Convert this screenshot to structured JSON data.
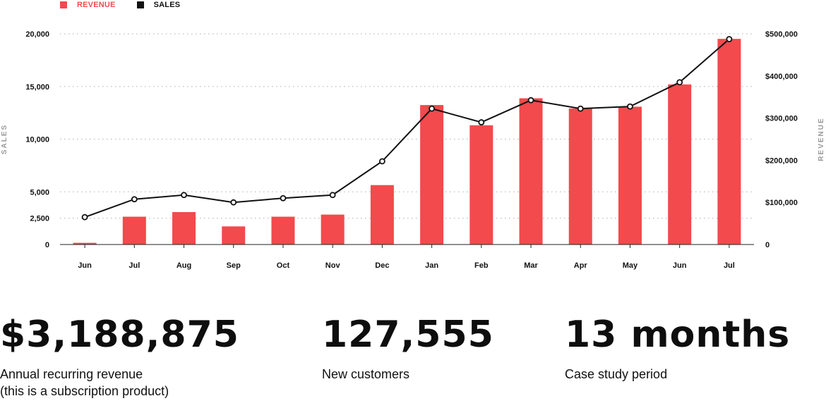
{
  "legend": [
    {
      "label": "REVENUE",
      "color": "#f24a4d",
      "text_color": "#f24a4d"
    },
    {
      "label": "SALES",
      "color": "#111111",
      "text_color": "#111111"
    }
  ],
  "chart_data": {
    "type": "bar+line",
    "categories": [
      "Jun",
      "Jul",
      "Aug",
      "Sep",
      "Oct",
      "Nov",
      "Dec",
      "Jan",
      "Feb",
      "Mar",
      "Apr",
      "May",
      "Jun",
      "Jul"
    ],
    "series": [
      {
        "name": "REVENUE",
        "type": "bar",
        "axis": "right",
        "color": "#f24a4d",
        "values": [
          4000,
          66000,
          77000,
          43000,
          66000,
          71000,
          141000,
          331000,
          283000,
          347000,
          323000,
          327000,
          380000,
          488000
        ]
      },
      {
        "name": "SALES",
        "type": "line",
        "axis": "left",
        "color": "#111111",
        "values": [
          2600,
          4300,
          4700,
          4000,
          4400,
          4700,
          7900,
          12900,
          11600,
          13700,
          12900,
          13100,
          15400,
          19500
        ]
      }
    ],
    "left_axis": {
      "label": "SALES",
      "range": [
        0,
        20000
      ],
      "ticks": [
        {
          "value": 0,
          "label": "0"
        },
        {
          "value": 2500,
          "label": "2,500"
        },
        {
          "value": 5000,
          "label": "5,000"
        },
        {
          "value": 10000,
          "label": "10,000"
        },
        {
          "value": 15000,
          "label": "15,000"
        },
        {
          "value": 20000,
          "label": "20,000"
        }
      ]
    },
    "right_axis": {
      "label": "REVENUE",
      "range": [
        0,
        500000
      ],
      "ticks": [
        {
          "value": 0,
          "label": "0"
        },
        {
          "value": 100000,
          "label": "$100,000"
        },
        {
          "value": 200000,
          "label": "$200,000"
        },
        {
          "value": 300000,
          "label": "$300,000"
        },
        {
          "value": 400000,
          "label": "$400,000"
        },
        {
          "value": 500000,
          "label": "$500,000"
        }
      ]
    },
    "grid": true,
    "legend_position": "top-left"
  },
  "stats": [
    {
      "value": "$3,188,875",
      "label": [
        "Annual recurring revenue",
        "(this is a subscription product)"
      ]
    },
    {
      "value": "127,555",
      "label": [
        "New customers"
      ]
    },
    {
      "value": "13 months",
      "label": [
        "Case study period"
      ]
    }
  ]
}
